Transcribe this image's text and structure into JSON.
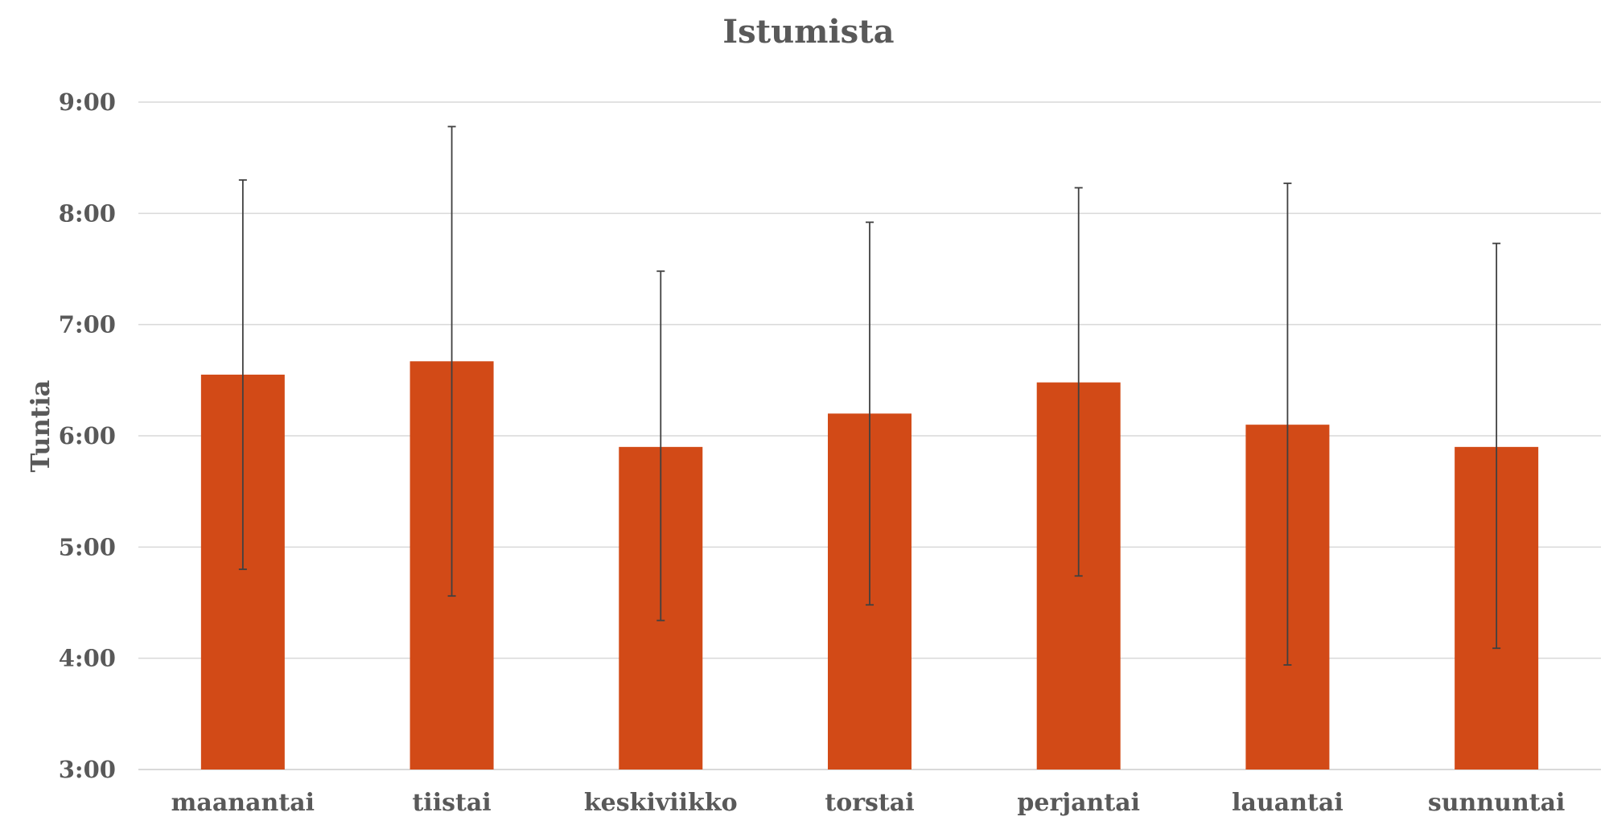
{
  "chart_data": {
    "type": "bar",
    "title": "Istumista",
    "xlabel": "",
    "ylabel": "Tuntia",
    "categories": [
      "maanantai",
      "tiistai",
      "keskiviikko",
      "torstai",
      "perjantai",
      "lauantai",
      "sunnuntai"
    ],
    "values": [
      6.55,
      6.67,
      5.9,
      6.2,
      6.48,
      6.1,
      5.9
    ],
    "error_upper": [
      8.3,
      8.78,
      7.48,
      7.92,
      8.23,
      8.27,
      7.73
    ],
    "error_lower": [
      4.8,
      4.56,
      4.34,
      4.48,
      4.74,
      3.94,
      4.09
    ],
    "ylim": [
      3,
      9
    ],
    "yticks": [
      3,
      4,
      5,
      6,
      7,
      8,
      9
    ],
    "ytick_labels": [
      "3:00",
      "4:00",
      "5:00",
      "6:00",
      "7:00",
      "8:00",
      "9:00"
    ],
    "grid": true,
    "bar_color": "#D24A17",
    "error_bar_color": "#404040",
    "gridline_color": "#D9D9D9",
    "text_color": "#595959"
  }
}
